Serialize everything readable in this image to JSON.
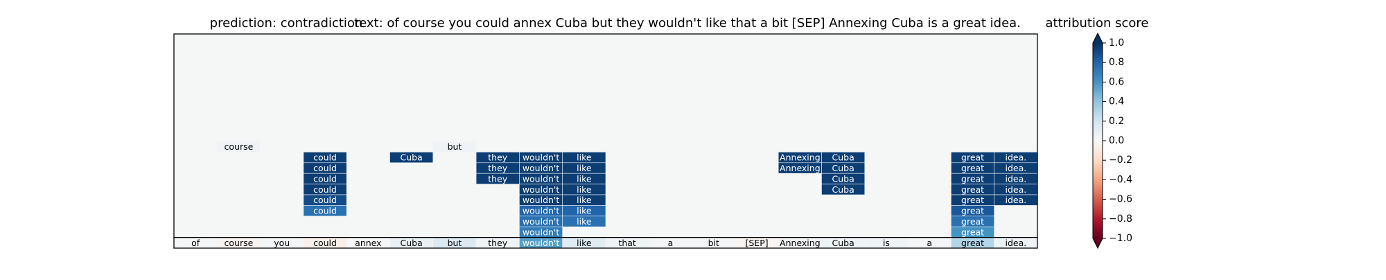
{
  "chart_data": {
    "type": "heatmap",
    "title_left": "prediction:  contradiction",
    "title": "text:  of course you could annex Cuba but they wouldn't like that a bit [SEP] Annexing Cuba is a great idea.",
    "categories": [
      "of",
      "course",
      "you",
      "could",
      "annex",
      "Cuba",
      "but",
      "they",
      "wouldn't",
      "like",
      "that",
      "a",
      "bit",
      "[SEP]",
      "Annexing",
      "Cuba",
      "is",
      "a",
      "great",
      "idea."
    ],
    "rows": [
      [
        null,
        0.04,
        null,
        null,
        null,
        null,
        0.04,
        null,
        null,
        null,
        null,
        null,
        null,
        null,
        null,
        null,
        null,
        null,
        null,
        null
      ],
      [
        null,
        null,
        null,
        0.95,
        null,
        0.95,
        null,
        0.95,
        0.95,
        0.95,
        null,
        null,
        null,
        null,
        0.95,
        0.95,
        null,
        null,
        0.95,
        0.95
      ],
      [
        null,
        null,
        null,
        0.95,
        null,
        null,
        null,
        0.95,
        0.95,
        0.95,
        null,
        null,
        null,
        null,
        0.95,
        0.95,
        null,
        null,
        0.95,
        0.95
      ],
      [
        null,
        null,
        null,
        0.95,
        null,
        null,
        null,
        0.95,
        0.95,
        0.95,
        null,
        null,
        null,
        null,
        null,
        0.95,
        null,
        null,
        0.95,
        0.95
      ],
      [
        null,
        null,
        null,
        0.95,
        null,
        null,
        null,
        null,
        0.95,
        0.95,
        null,
        null,
        null,
        null,
        null,
        0.95,
        null,
        null,
        0.95,
        0.95
      ],
      [
        null,
        null,
        null,
        0.9,
        null,
        null,
        null,
        null,
        0.95,
        0.95,
        null,
        null,
        null,
        null,
        null,
        null,
        null,
        null,
        0.95,
        0.95
      ],
      [
        null,
        null,
        null,
        0.75,
        null,
        null,
        null,
        null,
        0.8,
        0.8,
        null,
        null,
        null,
        null,
        null,
        null,
        null,
        null,
        0.85,
        null
      ],
      [
        null,
        null,
        null,
        null,
        null,
        null,
        null,
        null,
        0.75,
        0.75,
        null,
        null,
        null,
        null,
        null,
        null,
        null,
        null,
        0.75,
        null
      ],
      [
        null,
        null,
        null,
        null,
        null,
        null,
        null,
        null,
        0.7,
        null,
        null,
        null,
        null,
        null,
        null,
        null,
        null,
        null,
        0.6,
        null
      ],
      [
        0.02,
        -0.03,
        0.02,
        -0.05,
        0.0,
        0.08,
        0.15,
        0.05,
        0.55,
        0.12,
        0.05,
        0.02,
        0.02,
        -0.02,
        0.03,
        0.05,
        0.05,
        0.02,
        0.3,
        0.05
      ]
    ],
    "colorbar": {
      "label": "attribution score",
      "lim": [
        -1,
        1
      ],
      "ticks": [
        {
          "value": -1,
          "label": "−1.0"
        },
        {
          "value": -0.8,
          "label": "−0.8"
        },
        {
          "value": -0.6,
          "label": "−0.6"
        },
        {
          "value": -0.4,
          "label": "−0.4"
        },
        {
          "value": -0.2,
          "label": "−0.2"
        },
        {
          "value": 0,
          "label": "0.0"
        },
        {
          "value": 0.2,
          "label": "0.2"
        },
        {
          "value": 0.4,
          "label": "0.4"
        },
        {
          "value": 0.6,
          "label": "0.6"
        },
        {
          "value": 0.8,
          "label": "0.8"
        },
        {
          "value": 1,
          "label": "1.0"
        }
      ]
    }
  }
}
